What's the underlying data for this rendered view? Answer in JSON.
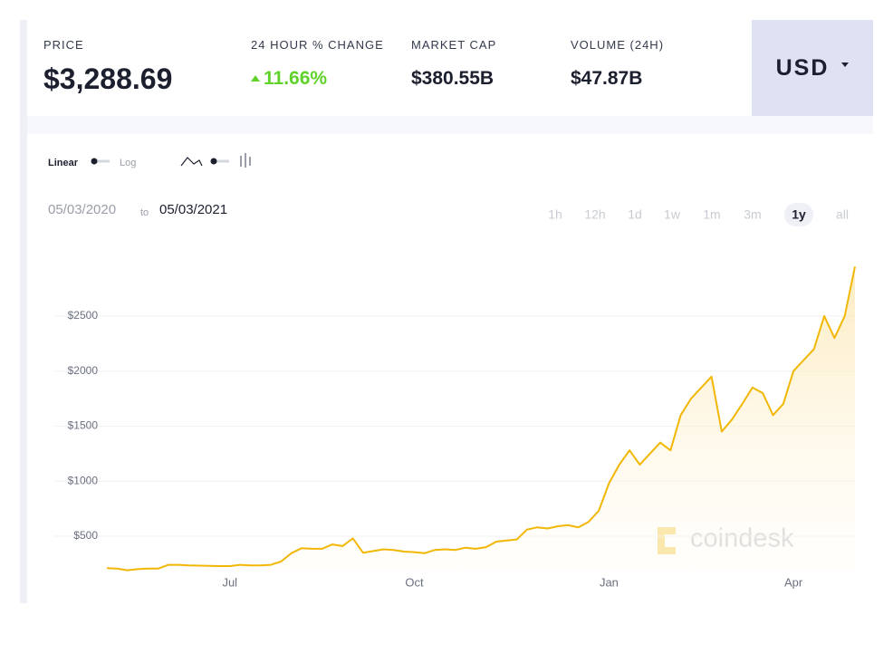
{
  "header": {
    "stats": [
      {
        "label": "PRICE",
        "value": "$3,288.69"
      },
      {
        "label": "24 HOUR % CHANGE",
        "value": "11.66%"
      },
      {
        "label": "MARKET CAP",
        "value": "$380.55B"
      },
      {
        "label": "VOLUME (24H)",
        "value": "$47.87B"
      }
    ],
    "currency": "USD"
  },
  "controls": {
    "scale_on": "Linear",
    "scale_off": "Log",
    "date_from": "05/03/2020",
    "date_to_word": "to",
    "date_to": "05/03/2021",
    "ranges": [
      "1h",
      "12h",
      "1d",
      "1w",
      "1m",
      "3m",
      "1y",
      "all"
    ],
    "active_range": 6
  },
  "watermark": "coindesk",
  "chart_data": {
    "type": "line",
    "color": "#f2b705",
    "categories": [
      null,
      null,
      null,
      null,
      null,
      null,
      null,
      null,
      null,
      null,
      null,
      null,
      "Jul",
      null,
      null,
      null,
      null,
      null,
      null,
      null,
      null,
      null,
      null,
      null,
      null,
      null,
      null,
      null,
      null,
      null,
      "Oct",
      null,
      null,
      null,
      null,
      null,
      null,
      null,
      null,
      null,
      null,
      null,
      null,
      null,
      null,
      null,
      null,
      null,
      null,
      "Jan",
      null,
      null,
      null,
      null,
      null,
      null,
      null,
      null,
      null,
      null,
      null,
      null,
      null,
      null,
      null,
      null,
      null,
      "Apr",
      null,
      null,
      null,
      null,
      null,
      null
    ],
    "values": [
      210,
      205,
      190,
      200,
      205,
      205,
      240,
      240,
      235,
      232,
      230,
      228,
      228,
      240,
      235,
      235,
      240,
      270,
      345,
      390,
      385,
      385,
      425,
      410,
      480,
      350,
      365,
      380,
      375,
      360,
      355,
      345,
      375,
      380,
      375,
      395,
      385,
      400,
      450,
      460,
      470,
      560,
      580,
      570,
      590,
      600,
      580,
      630,
      730,
      980,
      1150,
      1280,
      1150,
      1250,
      1350,
      1280,
      1600,
      1750,
      1850,
      1950,
      1450,
      1560,
      1700,
      1850,
      1800,
      1600,
      1700,
      2000,
      2100,
      2200,
      2500,
      2300,
      2500,
      2950
    ],
    "ylim": [
      187,
      2985
    ],
    "yticks": [
      {
        "value": 500,
        "label": "$500"
      },
      {
        "value": 1000,
        "label": "$1000"
      },
      {
        "value": 1500,
        "label": "$1500"
      },
      {
        "value": 2000,
        "label": "$2000"
      },
      {
        "value": 2500,
        "label": "$2500"
      }
    ],
    "grid": true
  }
}
